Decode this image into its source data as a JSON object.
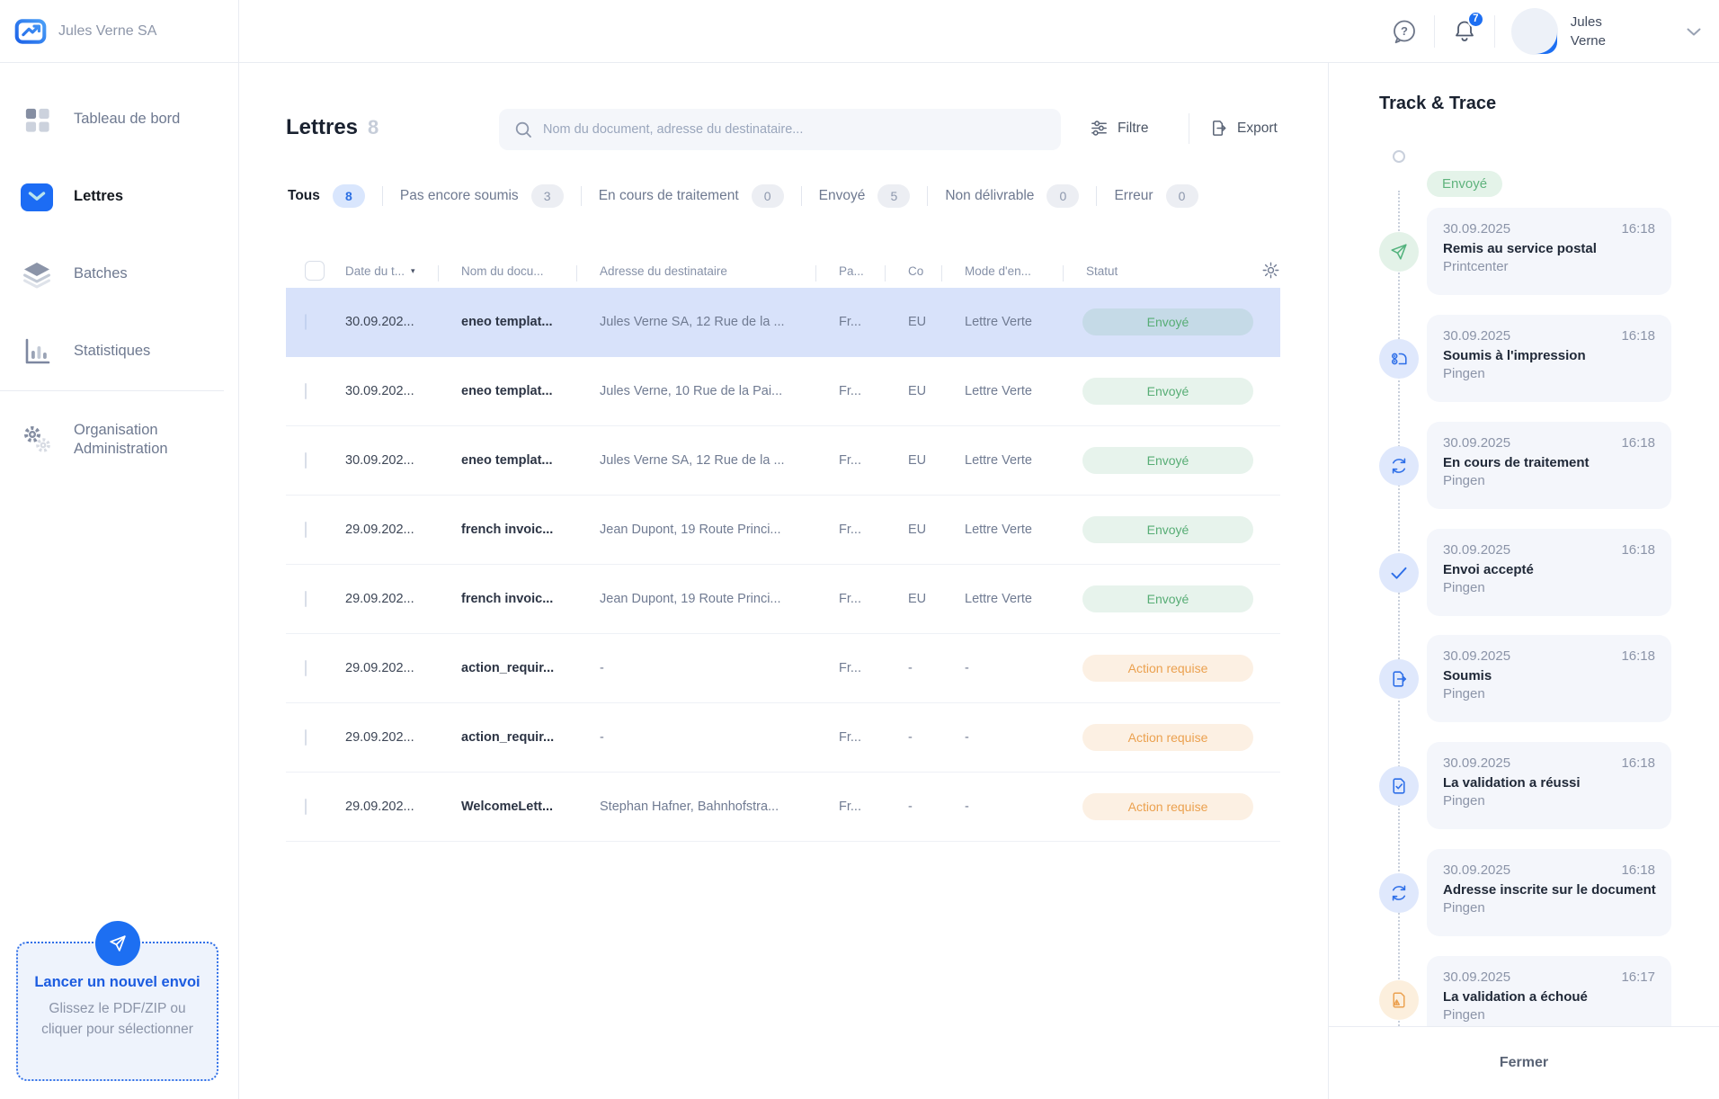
{
  "brand": {
    "company": "Jules Verne SA"
  },
  "topbar": {
    "user_first_name": "Jules",
    "user_last_name": "Verne",
    "notification_count": "7"
  },
  "sidebar": {
    "items": [
      {
        "label": "Tableau de bord"
      },
      {
        "label": "Lettres"
      },
      {
        "label": "Batches"
      },
      {
        "label": "Statistiques"
      },
      {
        "label": "Organisation Administration"
      }
    ],
    "upload": {
      "title": "Lancer un nouvel envoi",
      "subtitle_line1": "Glissez le PDF/ZIP ou",
      "subtitle_line2": "cliquer pour sélectionner"
    }
  },
  "page": {
    "title": "Lettres",
    "count": "8"
  },
  "search": {
    "placeholder": "Nom du document, adresse du destinataire..."
  },
  "actions": {
    "filter": "Filtre",
    "export": "Export"
  },
  "tabs": [
    {
      "label": "Tous",
      "count": "8",
      "active": true
    },
    {
      "label": "Pas encore soumis",
      "count": "3",
      "active": false
    },
    {
      "label": "En cours de traitement",
      "count": "0",
      "active": false
    },
    {
      "label": "Envoyé",
      "count": "5",
      "active": false
    },
    {
      "label": "Non délivrable",
      "count": "0",
      "active": false
    },
    {
      "label": "Erreur",
      "count": "0",
      "active": false
    }
  ],
  "table": {
    "columns": [
      {
        "label": "Date du t..."
      },
      {
        "label": "Nom du docu..."
      },
      {
        "label": "Adresse du destinataire"
      },
      {
        "label": "Pa..."
      },
      {
        "label": "Co"
      },
      {
        "label": "Mode d'en..."
      },
      {
        "label": "Statut"
      }
    ],
    "rows": [
      {
        "date": "30.09.202...",
        "name": "eneo templat...",
        "address": "Jules Verne SA, 12 Rue de la ...",
        "paper": "Fr...",
        "country": "EU",
        "mode": "Lettre Verte",
        "status": "Envoyé",
        "status_type": "sent",
        "selected": true
      },
      {
        "date": "30.09.202...",
        "name": "eneo templat...",
        "address": "Jules Verne, 10 Rue de la Pai...",
        "paper": "Fr...",
        "country": "EU",
        "mode": "Lettre Verte",
        "status": "Envoyé",
        "status_type": "sent",
        "selected": false
      },
      {
        "date": "30.09.202...",
        "name": "eneo templat...",
        "address": "Jules Verne SA, 12 Rue de la ...",
        "paper": "Fr...",
        "country": "EU",
        "mode": "Lettre Verte",
        "status": "Envoyé",
        "status_type": "sent",
        "selected": false
      },
      {
        "date": "29.09.202...",
        "name": "french invoic...",
        "address": "Jean Dupont, 19 Route Princi...",
        "paper": "Fr...",
        "country": "EU",
        "mode": "Lettre Verte",
        "status": "Envoyé",
        "status_type": "sent",
        "selected": false
      },
      {
        "date": "29.09.202...",
        "name": "french invoic...",
        "address": "Jean Dupont, 19 Route Princi...",
        "paper": "Fr...",
        "country": "EU",
        "mode": "Lettre Verte",
        "status": "Envoyé",
        "status_type": "sent",
        "selected": false
      },
      {
        "date": "29.09.202...",
        "name": "action_requir...",
        "address": "-",
        "paper": "Fr...",
        "country": "-",
        "mode": "-",
        "status": "Action requise",
        "status_type": "action",
        "selected": false
      },
      {
        "date": "29.09.202...",
        "name": "action_requir...",
        "address": "-",
        "paper": "Fr...",
        "country": "-",
        "mode": "-",
        "status": "Action requise",
        "status_type": "action",
        "selected": false
      },
      {
        "date": "29.09.202...",
        "name": "WelcomeLett...",
        "address": "Stephan Hafner, Bahnhofstra...",
        "paper": "Fr...",
        "country": "-",
        "mode": "-",
        "status": "Action requise",
        "status_type": "action",
        "selected": false
      }
    ]
  },
  "track": {
    "title": "Track & Trace",
    "status_badge": "Envoyé",
    "close_label": "Fermer",
    "events": [
      {
        "date": "30.09.2025",
        "time": "16:18",
        "title": "Remis au service postal",
        "source": "Printcenter",
        "icon": "send-icon",
        "tone": "green"
      },
      {
        "date": "30.09.2025",
        "time": "16:18",
        "title": "Soumis à l'impression",
        "source": "Pingen",
        "icon": "printer-icon",
        "tone": "blue"
      },
      {
        "date": "30.09.2025",
        "time": "16:18",
        "title": "En cours de traitement",
        "source": "Pingen",
        "icon": "sync-icon",
        "tone": "blue"
      },
      {
        "date": "30.09.2025",
        "time": "16:18",
        "title": "Envoi accepté",
        "source": "Pingen",
        "icon": "check-icon",
        "tone": "blue"
      },
      {
        "date": "30.09.2025",
        "time": "16:18",
        "title": "Soumis",
        "source": "Pingen",
        "icon": "document-export-icon",
        "tone": "blue"
      },
      {
        "date": "30.09.2025",
        "time": "16:18",
        "title": "La validation a réussi",
        "source": "Pingen",
        "icon": "document-check-icon",
        "tone": "blue"
      },
      {
        "date": "30.09.2025",
        "time": "16:18",
        "title": "Adresse inscrite sur le document",
        "source": "Pingen",
        "icon": "sync-icon",
        "tone": "blue"
      },
      {
        "date": "30.09.2025",
        "time": "16:17",
        "title": "La validation a échoué",
        "source": "Pingen",
        "icon": "document-warning-icon",
        "tone": "orange"
      }
    ]
  },
  "colors": {
    "primary_blue": "#1d6ff2",
    "selected_row": "#d8e2fa",
    "status_sent_text": "#57ad75",
    "status_action_text": "#eba14f",
    "card_background": "#f4f6fb"
  }
}
